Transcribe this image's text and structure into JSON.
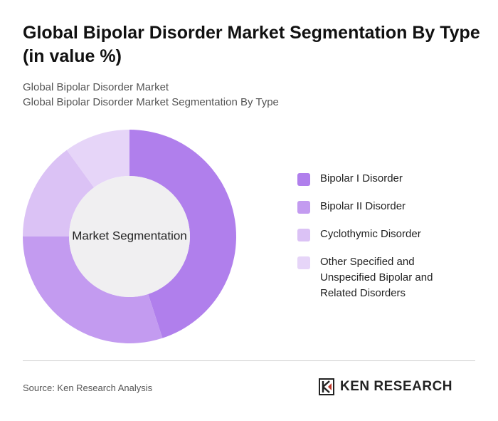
{
  "chart_data": {
    "type": "donut",
    "title": "Global Bipolar Disorder Market Segmentation By Type (in value %)",
    "subtitle": "Global Bipolar Disorder Market",
    "subtitle2": "Global Bipolar Disorder Market Segmentation By Type",
    "center_label": "Market Segmentation",
    "categories": [
      "Bipolar I Disorder",
      "Bipolar II Disorder",
      "Cyclothymic Disorder",
      "Other Specified and Unspecified Bipolar and Related Disorders"
    ],
    "values": [
      45,
      30,
      15,
      10
    ],
    "colors": [
      "#b07fec",
      "#c39bf0",
      "#dbc2f5",
      "#e6d5f8"
    ]
  },
  "source": "Source: Ken Research Analysis",
  "logo": "KEN RESEARCH"
}
